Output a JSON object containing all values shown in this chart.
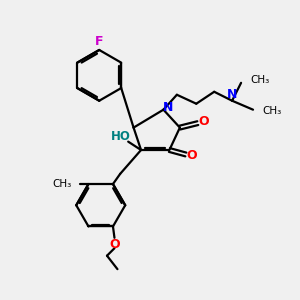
{
  "background_color": "#f0f0f0",
  "atom_colors": {
    "F": "#cc00cc",
    "N": "#0000ff",
    "O_carbonyl": "#ff0000",
    "O_hydroxyl": "#008080",
    "O_ether": "#ff0000",
    "C": "#000000"
  },
  "bond_color": "#000000",
  "bond_width": 1.6,
  "figsize": [
    3.0,
    3.0
  ],
  "dpi": 100,
  "xlim": [
    0,
    10
  ],
  "ylim": [
    0,
    10
  ]
}
